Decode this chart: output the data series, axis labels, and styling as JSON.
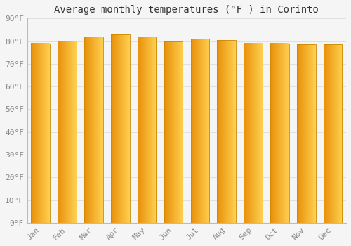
{
  "title": "Average monthly temperatures (°F ) in Corinto",
  "months": [
    "Jan",
    "Feb",
    "Mar",
    "Apr",
    "May",
    "Jun",
    "Jul",
    "Aug",
    "Sep",
    "Oct",
    "Nov",
    "Dec"
  ],
  "values": [
    79.0,
    80.2,
    82.0,
    83.0,
    82.0,
    80.0,
    81.0,
    80.5,
    79.0,
    79.0,
    78.5,
    78.5
  ],
  "ylim": [
    0,
    90
  ],
  "yticks": [
    0,
    10,
    20,
    30,
    40,
    50,
    60,
    70,
    80,
    90
  ],
  "ytick_labels": [
    "0°F",
    "10°F",
    "20°F",
    "30°F",
    "40°F",
    "50°F",
    "60°F",
    "70°F",
    "80°F",
    "90°F"
  ],
  "bar_color_left": "#E8900A",
  "bar_color_right": "#FFD050",
  "bar_edge_color": "#CC8800",
  "background_color": "#F5F5F5",
  "grid_color": "#E0E0E0",
  "title_fontsize": 10,
  "tick_fontsize": 8,
  "bar_width": 0.7
}
